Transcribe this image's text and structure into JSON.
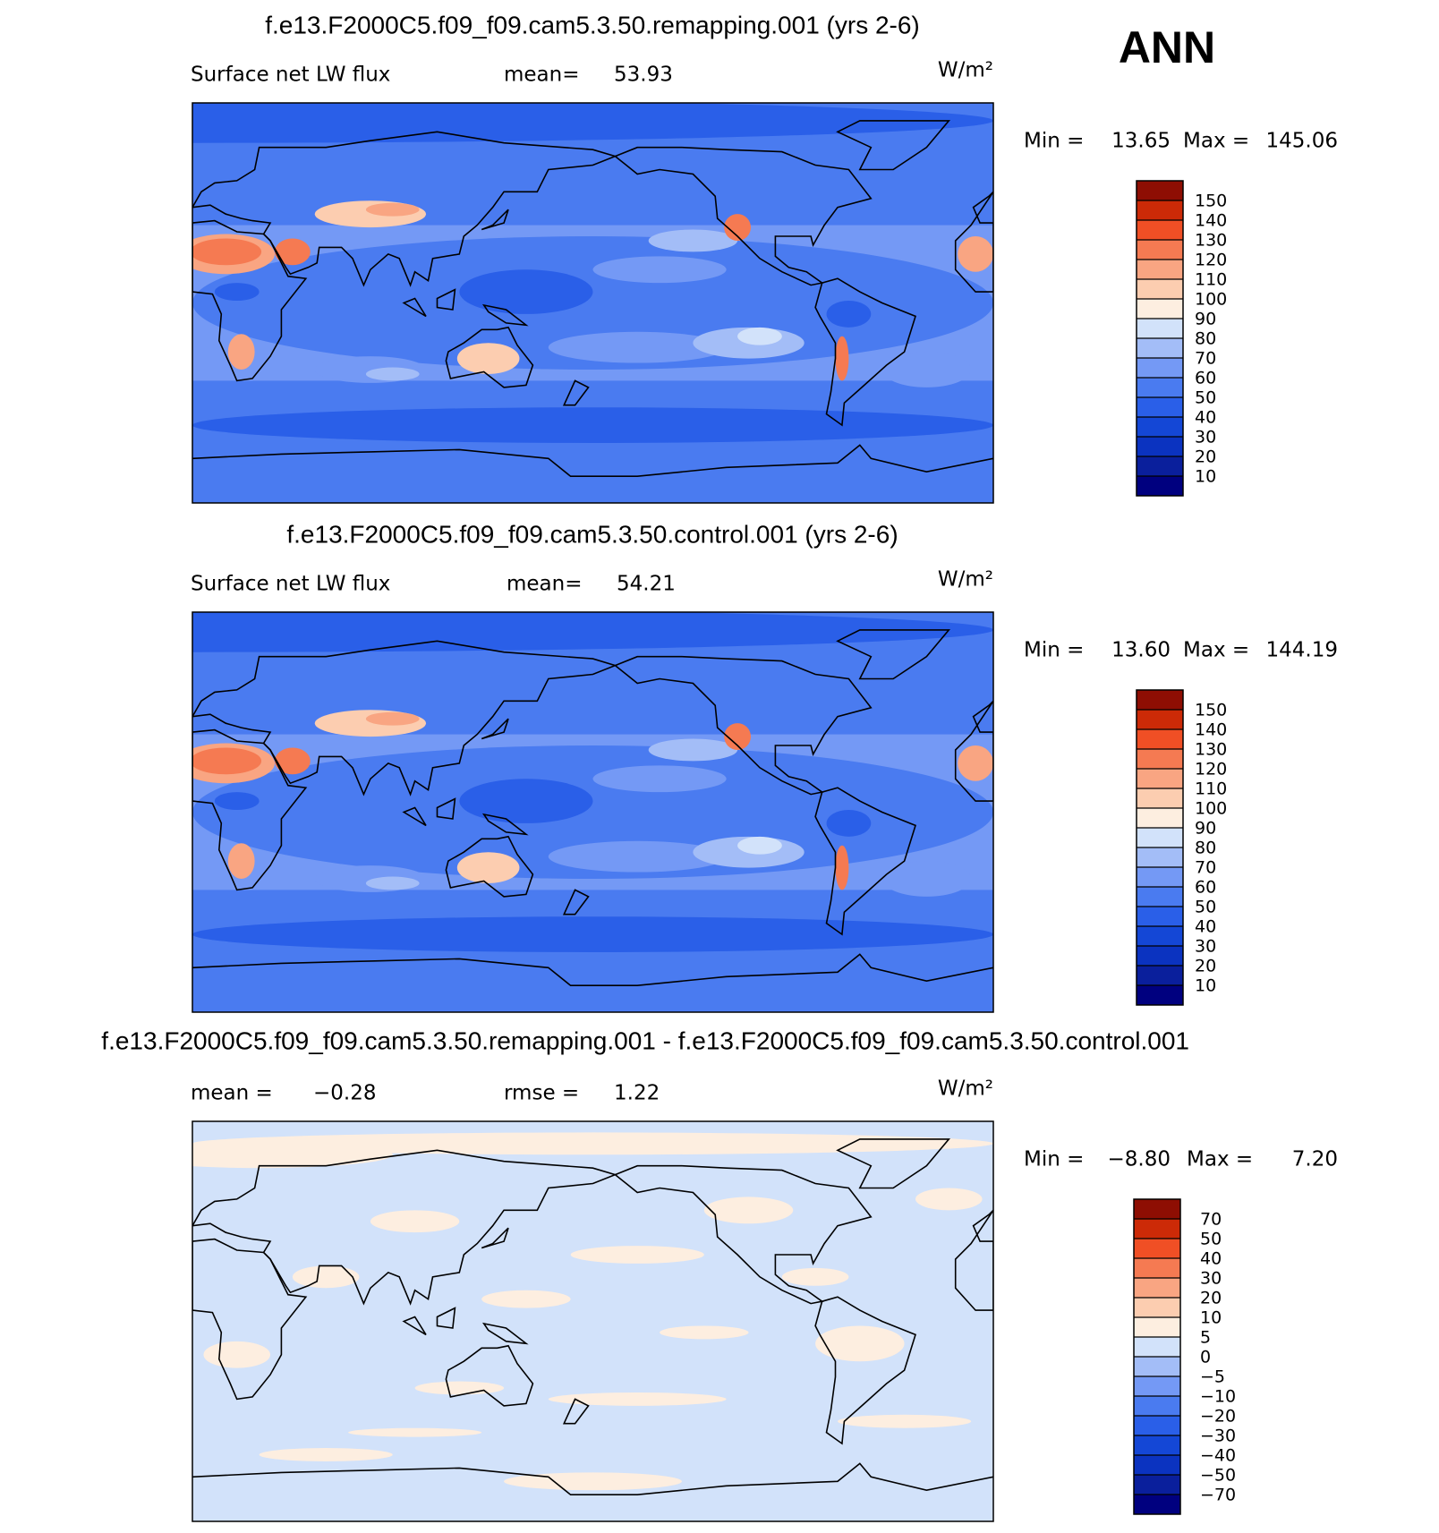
{
  "figure_label": "ANN",
  "panels": [
    {
      "title": "f.e13.F2000C5.f09_f09.cam5.3.50.remapping.001 (yrs 2-6)",
      "variable": "Surface net LW flux",
      "stats": [
        {
          "label": "mean=",
          "value": 53.93
        }
      ],
      "units": "W/m²",
      "min_label": "Min =",
      "min": 13.65,
      "max_label": "Max =",
      "max": 145.06,
      "colorbar": {
        "levels": [
          10,
          20,
          30,
          40,
          50,
          60,
          70,
          80,
          90,
          100,
          110,
          120,
          130,
          140,
          150
        ],
        "colors": [
          "#00007f",
          "#0a1f9c",
          "#0b33c0",
          "#1447d6",
          "#2a5fe8",
          "#4a7bf0",
          "#7499f5",
          "#a3bdf7",
          "#d2e2fa",
          "#fdeee0",
          "#fccdb0",
          "#f9a582",
          "#f57a52",
          "#f04f25",
          "#cc2a07",
          "#8e0e03"
        ]
      }
    },
    {
      "title": "f.e13.F2000C5.f09_f09.cam5.3.50.control.001 (yrs 2-6)",
      "variable": "Surface net LW flux",
      "stats": [
        {
          "label": "mean=",
          "value": 54.21
        }
      ],
      "units": "W/m²",
      "min_label": "Min =",
      "min": {
        "value": 13.6,
        "label": "13.60"
      },
      "max_label": "Max =",
      "max": 144.19,
      "colorbar": {
        "levels": [
          10,
          20,
          30,
          40,
          50,
          60,
          70,
          80,
          90,
          100,
          110,
          120,
          130,
          140,
          150
        ],
        "colors": [
          "#00007f",
          "#0a1f9c",
          "#0b33c0",
          "#1447d6",
          "#2a5fe8",
          "#4a7bf0",
          "#7499f5",
          "#a3bdf7",
          "#d2e2fa",
          "#fdeee0",
          "#fccdb0",
          "#f9a582",
          "#f57a52",
          "#f04f25",
          "#cc2a07",
          "#8e0e03"
        ]
      }
    },
    {
      "title": "f.e13.F2000C5.f09_f09.cam5.3.50.remapping.001 - f.e13.F2000C5.f09_f09.cam5.3.50.control.001",
      "stats": [
        {
          "label": "mean =",
          "value": {
            "value": -0.28,
            "label": "−0.28"
          }
        },
        {
          "label": "rmse =",
          "value": 1.22
        }
      ],
      "units": "W/m²",
      "min_label": "Min =",
      "min": {
        "value": -8.8,
        "label": "−8.80"
      },
      "max_label": "Max =",
      "max": {
        "value": 7.2,
        "label": "7.20"
      },
      "colorbar": {
        "levels": [
          {
            "value": -70,
            "label": "−70"
          },
          {
            "value": -50,
            "label": "−50"
          },
          {
            "value": -40,
            "label": "−40"
          },
          {
            "value": -30,
            "label": "−30"
          },
          {
            "value": -20,
            "label": "−20"
          },
          {
            "value": -10,
            "label": "−10"
          },
          {
            "value": -5,
            "label": "−5"
          },
          0,
          5,
          10,
          20,
          30,
          40,
          50,
          70
        ],
        "colors": [
          "#00007f",
          "#0a1f9c",
          "#0b33c0",
          "#1447d6",
          "#2a5fe8",
          "#4a7bf0",
          "#7499f5",
          "#a3bdf7",
          "#d2e2fa",
          "#fdeee0",
          "#fccdb0",
          "#f9a582",
          "#f57a52",
          "#f04f25",
          "#cc2a07",
          "#8e0e03"
        ]
      }
    }
  ]
}
